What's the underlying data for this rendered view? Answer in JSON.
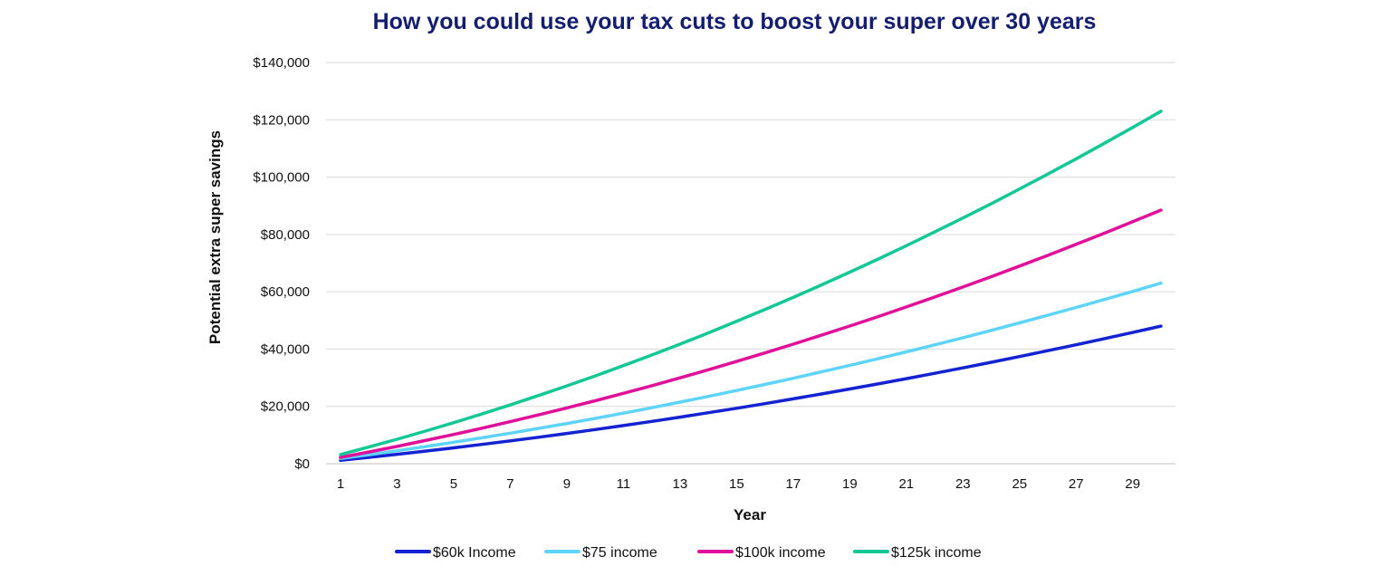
{
  "chart_data": {
    "type": "line",
    "title": "How you could use your tax cuts to boost your super over 30 years",
    "xlabel": "Year",
    "ylabel": "Potential extra super savings",
    "x": [
      1,
      2,
      3,
      4,
      5,
      6,
      7,
      8,
      9,
      10,
      11,
      12,
      13,
      14,
      15,
      16,
      17,
      18,
      19,
      20,
      21,
      22,
      23,
      24,
      25,
      26,
      27,
      28,
      29,
      30
    ],
    "x_tick_labels": [
      "1",
      "3",
      "5",
      "7",
      "9",
      "11",
      "13",
      "15",
      "17",
      "19",
      "21",
      "23",
      "25",
      "27",
      "29"
    ],
    "y_tick_labels": [
      "$0",
      "$20,000",
      "$40,000",
      "$60,000",
      "$80,000",
      "$100,000",
      "$120,000",
      "$140,000"
    ],
    "ylim": [
      0,
      140000
    ],
    "xlim": [
      1,
      30
    ],
    "grid": "horizontal",
    "legend_position": "bottom",
    "series": [
      {
        "name": "$60k Income",
        "color": "#1423d2",
        "start": 1200,
        "end": 48000
      },
      {
        "name": "$75 income",
        "color": "#5fd4fa",
        "start": 1800,
        "end": 63000
      },
      {
        "name": "$100k income",
        "color": "#e0109a",
        "start": 2200,
        "end": 88500
      },
      {
        "name": "$125k income",
        "color": "#14c896",
        "start": 3200,
        "end": 123000
      }
    ]
  }
}
